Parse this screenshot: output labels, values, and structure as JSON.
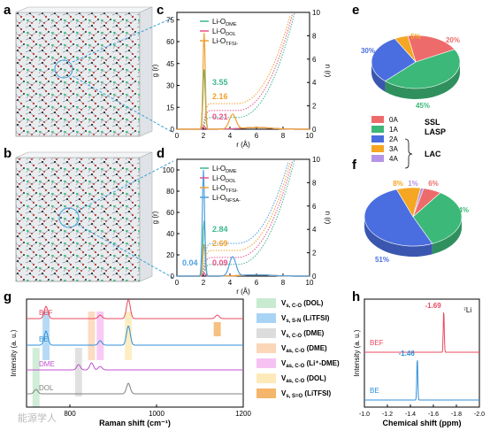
{
  "panel_labels": [
    "a",
    "b",
    "c",
    "d",
    "e",
    "f",
    "g",
    "h"
  ],
  "colors": {
    "li_dme": "#3cb88c",
    "li_dol": "#e8508c",
    "li_tfsi": "#f0a030",
    "li_nfsa": "#4ea0e0",
    "pie_0a": "#ee6b6b",
    "pie_1a": "#3cb878",
    "pie_2a": "#4a6ee0",
    "pie_3a": "#f5a623",
    "pie_4a": "#b494e6",
    "raman_bef": "#e84a5f",
    "raman_be": "#2f8fd8",
    "raman_dme": "#c050d0",
    "raman_dol": "#808080",
    "nmr_bef": "#e84a5f",
    "nmr_be": "#2f8fd8"
  },
  "legend_cd": {
    "g_axis": "g (r)",
    "n_axis": "n (r)",
    "x_axis": "r (Å)"
  },
  "legend_e": {
    "items": [
      "0A",
      "1A",
      "2A",
      "3A",
      "4A"
    ],
    "ssl": "SSL",
    "lasp": "LASP",
    "lac": "LAC"
  },
  "legend_g": {
    "items": [
      {
        "main": "V",
        "sub": "s, C-O",
        "tail": " (DOL)"
      },
      {
        "main": "V",
        "sub": "s, S-N",
        "tail": " (LiTFSI)"
      },
      {
        "main": "V",
        "sub": "s, C-O",
        "tail": " (DME)"
      },
      {
        "main": "V",
        "sub": "as, C-O",
        "tail": " (DME)"
      },
      {
        "main": "V",
        "sub": "as, C-O",
        "tail": " (Li⁺-DME)"
      },
      {
        "main": "V",
        "sub": "as, C-O",
        "tail": " (DOL)"
      },
      {
        "main": "V",
        "sub": "s, S=O",
        "tail": " (LiTFSI)"
      }
    ]
  },
  "watermark": "能源学人",
  "chart_data": [
    {
      "id": "c",
      "type": "line",
      "xlabel": "r (Å)",
      "ylabel": "g (r)",
      "y2label": "n (r)",
      "xlim": [
        0,
        10
      ],
      "ylim": [
        0,
        80
      ],
      "y2lim": [
        0,
        10
      ],
      "xticks": [
        0,
        2,
        4,
        6,
        8,
        10
      ],
      "yticks": [
        0,
        15,
        30,
        45,
        60,
        75
      ],
      "y2ticks": [
        0,
        2,
        4,
        6,
        8,
        10
      ],
      "series": [
        {
          "name": "Li-O_DME",
          "color_key": "li_dme",
          "peak_r": 2.05,
          "peak_g": 41
        },
        {
          "name": "Li-O_DOL",
          "color_key": "li_dol",
          "peak_r": 2.05,
          "peak_g": 2
        },
        {
          "name": "Li-O_TFSI-",
          "color_key": "li_tfsi",
          "peak_r": 2.05,
          "peak_g": 66,
          "peak2_r": 4.2,
          "peak2_g": 10
        }
      ],
      "annotations": [
        {
          "text": "3.55",
          "color_key": "li_dme"
        },
        {
          "text": "2.16",
          "color_key": "li_tfsi"
        },
        {
          "text": "0.21",
          "color_key": "li_dol"
        }
      ]
    },
    {
      "id": "d",
      "type": "line",
      "xlabel": "r (Å)",
      "ylabel": "g (r)",
      "y2label": "n (r)",
      "xlim": [
        0,
        10
      ],
      "ylim": [
        0,
        110
      ],
      "y2lim": [
        0,
        10
      ],
      "xticks": [
        0,
        2,
        4,
        6,
        8,
        10
      ],
      "yticks": [
        0,
        20,
        40,
        60,
        80,
        100
      ],
      "y2ticks": [
        0,
        2,
        4,
        6,
        8,
        10
      ],
      "series": [
        {
          "name": "Li-O_DME",
          "color_key": "li_dme",
          "peak_r": 2.05,
          "peak_g": 52
        },
        {
          "name": "Li-O_DOL",
          "color_key": "li_dol",
          "peak_r": 2.05,
          "peak_g": 3
        },
        {
          "name": "Li-O_TFSI-",
          "color_key": "li_tfsi",
          "peak_r": 2.05,
          "peak_g": 30
        },
        {
          "name": "Li-O_NFSA-",
          "color_key": "li_nfsa",
          "peak_r": 2.0,
          "peak_g": 100,
          "peak2_r": 4.2,
          "peak2_g": 18
        }
      ],
      "annotations": [
        {
          "text": "2.84",
          "color_key": "li_dme"
        },
        {
          "text": "2.69",
          "color_key": "li_tfsi"
        },
        {
          "text": "0.04",
          "color_key": "li_nfsa"
        },
        {
          "text": "0.09",
          "color_key": "li_dol"
        }
      ]
    },
    {
      "id": "e",
      "type": "pie",
      "slices": [
        {
          "label": "0A",
          "value": 20,
          "color_key": "pie_0a"
        },
        {
          "label": "1A",
          "value": 45,
          "color_key": "pie_1a"
        },
        {
          "label": "2A",
          "value": 30,
          "color_key": "pie_2a"
        },
        {
          "label": "3A",
          "value": 5,
          "color_key": "pie_3a"
        }
      ],
      "slice_labels": [
        "20%",
        "45%",
        "30%",
        "5%"
      ]
    },
    {
      "id": "f",
      "type": "pie",
      "slices": [
        {
          "label": "0A",
          "value": 6,
          "color_key": "pie_0a"
        },
        {
          "label": "1A",
          "value": 34,
          "color_key": "pie_1a"
        },
        {
          "label": "2A",
          "value": 51,
          "color_key": "pie_2a"
        },
        {
          "label": "3A",
          "value": 8,
          "color_key": "pie_3a"
        },
        {
          "label": "4A",
          "value": 1,
          "color_key": "pie_4a"
        }
      ],
      "slice_labels": [
        "6%",
        "34%",
        "51%",
        "8%",
        "1%"
      ]
    },
    {
      "id": "g",
      "type": "line",
      "xlabel": "Raman shift (cm⁻¹)",
      "ylabel": "Intensity (a. u.)",
      "xlim": [
        700,
        1200
      ],
      "xticks": [
        800,
        1000,
        1200
      ],
      "series": [
        {
          "name": "BEF",
          "color_key": "raman_bef"
        },
        {
          "name": "BE",
          "color_key": "raman_be"
        },
        {
          "name": "DME",
          "color_key": "raman_dme"
        },
        {
          "name": "DOL",
          "color_key": "raman_dol"
        }
      ],
      "bands": [
        {
          "center": 722,
          "color_key": "band1"
        },
        {
          "center": 745,
          "color_key": "band2"
        },
        {
          "center": 820,
          "color_key": "band3"
        },
        {
          "center": 850,
          "color_key": "band4"
        },
        {
          "center": 870,
          "color_key": "band5"
        },
        {
          "center": 935,
          "color_key": "band6"
        },
        {
          "center": 1140,
          "color_key": "band7"
        }
      ]
    },
    {
      "id": "h",
      "type": "line",
      "xlabel": "Chemical shift (ppm)",
      "ylabel": "Intensity (a. u.)",
      "xlim": [
        -1.0,
        -2.0
      ],
      "xticks": [
        -1.0,
        -1.2,
        -1.4,
        -1.6,
        -1.8,
        -2.0
      ],
      "title": "⁷Li",
      "series": [
        {
          "name": "BEF",
          "color_key": "nmr_bef",
          "peak": -1.69
        },
        {
          "name": "BE",
          "color_key": "nmr_be",
          "peak": -1.46
        }
      ],
      "annotations": [
        {
          "text": "-1.69",
          "color_key": "nmr_bef"
        },
        {
          "text": "-1.46",
          "color_key": "nmr_be"
        }
      ]
    }
  ]
}
